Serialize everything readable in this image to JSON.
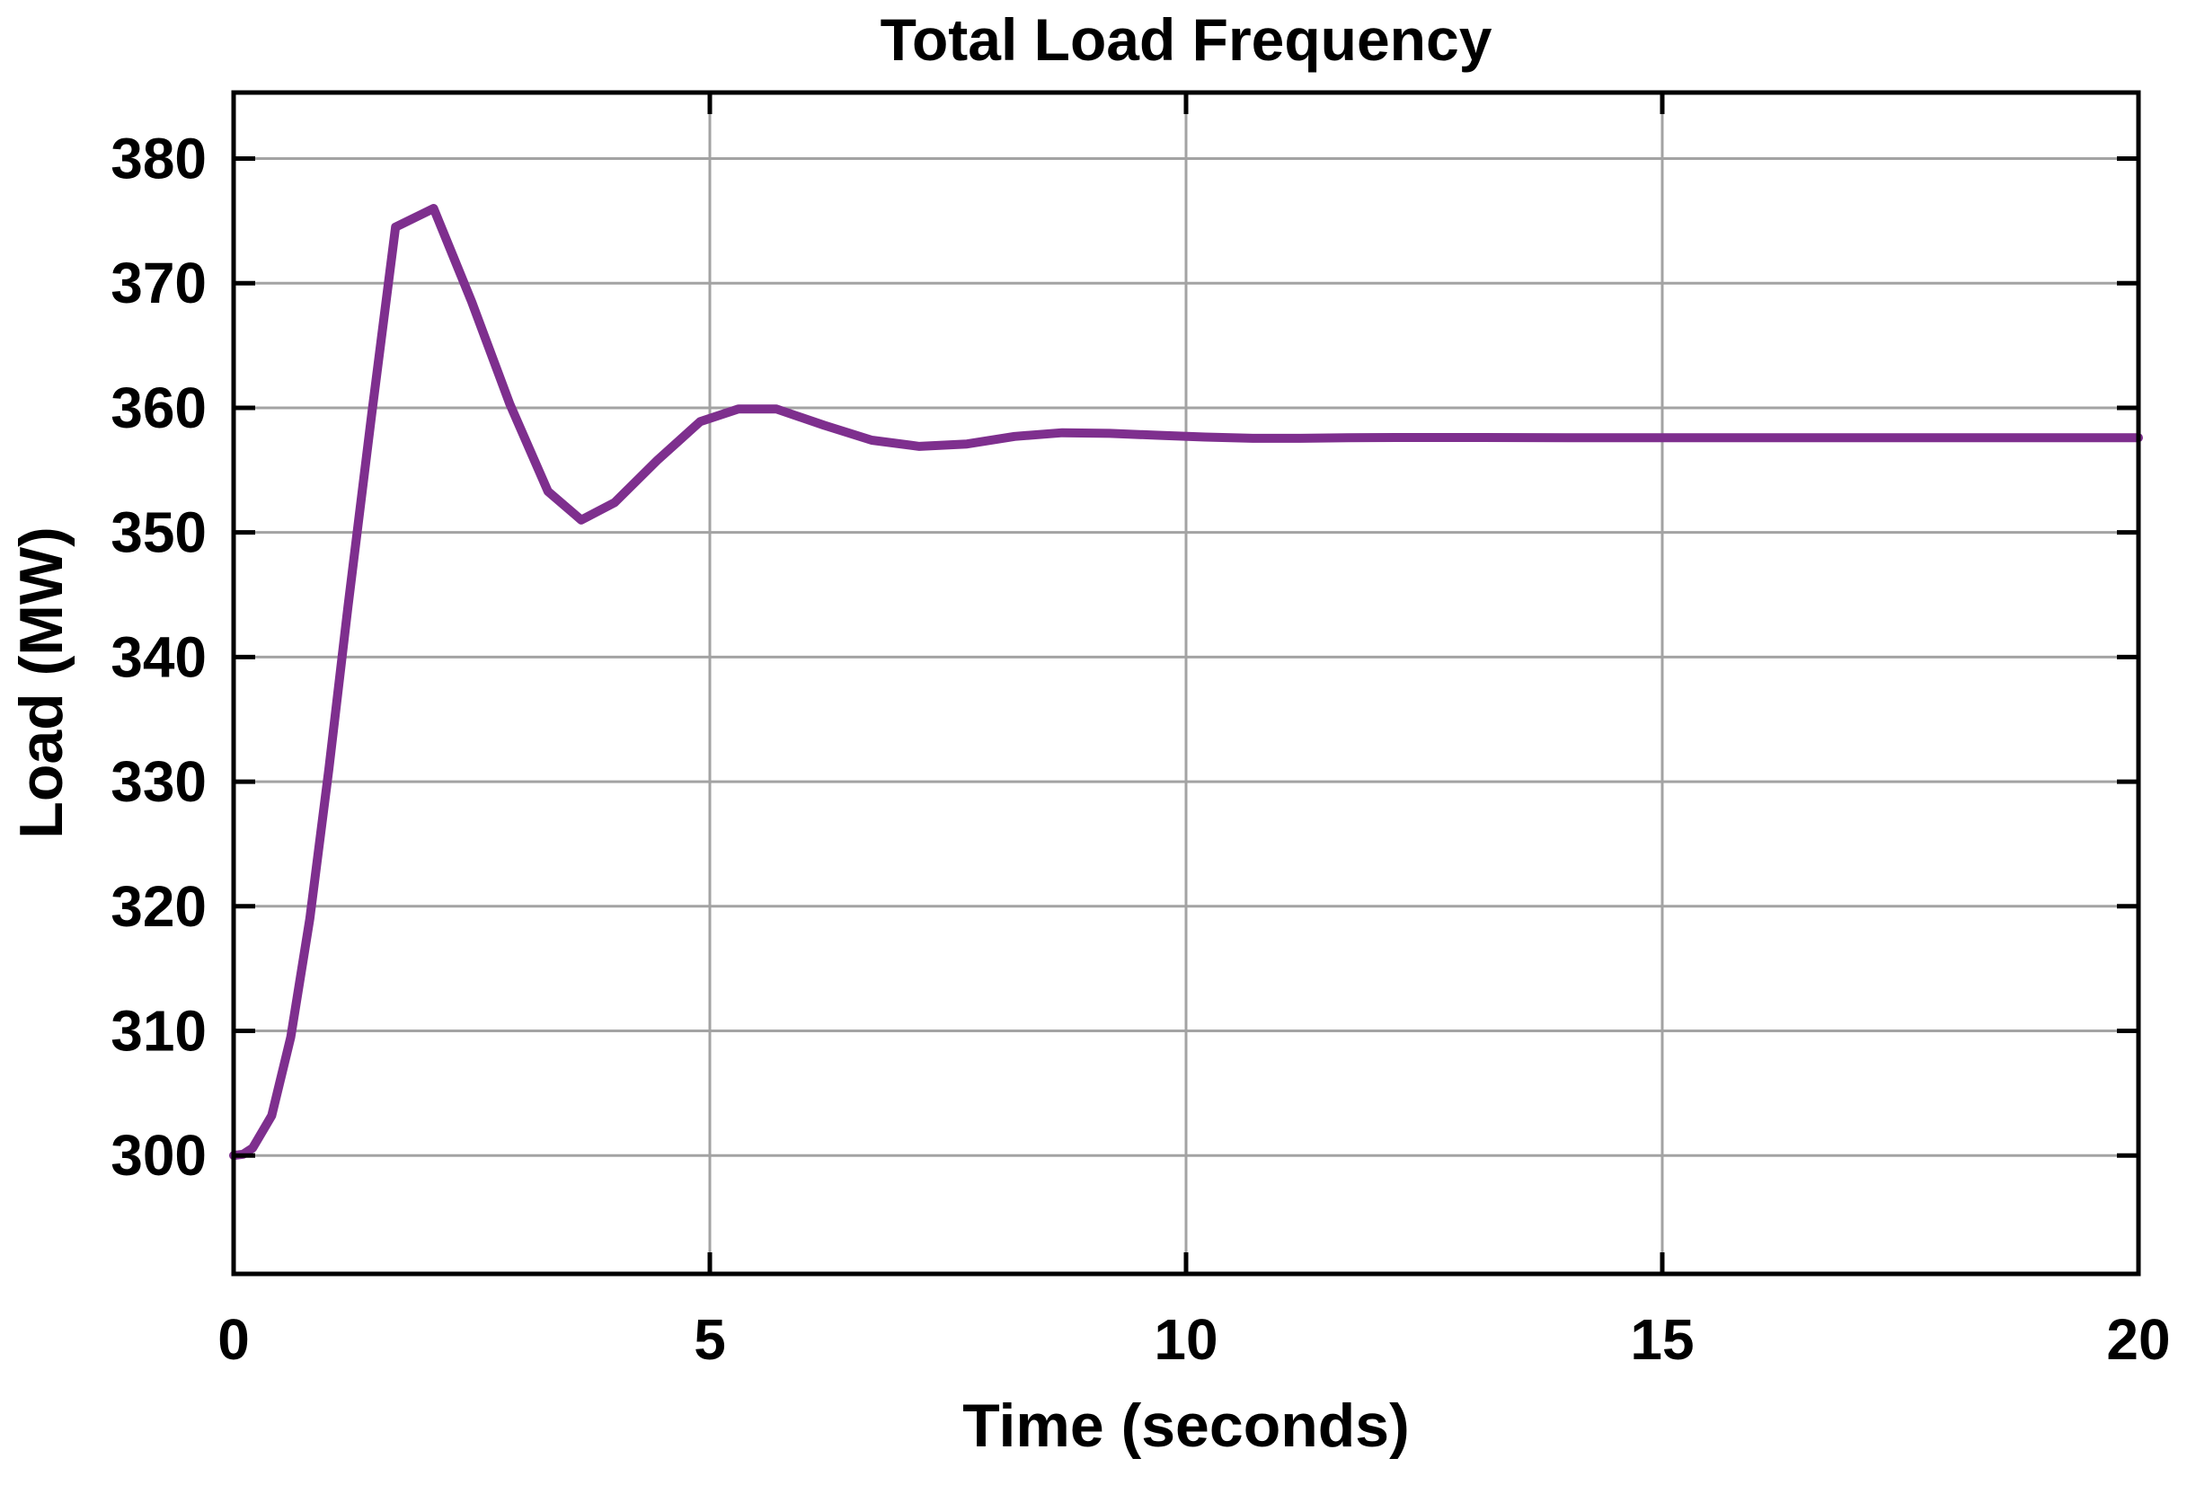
{
  "chart_data": {
    "type": "line",
    "title": "Total Load Frequency",
    "xlabel": "Time (seconds)",
    "ylabel": "Load (MW)",
    "xlim": [
      0,
      20
    ],
    "ylim": [
      290.5,
      385.3
    ],
    "xticks": [
      0,
      5,
      10,
      15,
      20
    ],
    "yticks": [
      300,
      310,
      320,
      330,
      340,
      350,
      360,
      370,
      380
    ],
    "grid": true,
    "legend": null,
    "colors": {
      "line": "#7E2F8E",
      "grid": "#A3A3A3",
      "axis": "#000000",
      "background": "#FFFFFF",
      "text": "#000000"
    },
    "series": [
      {
        "name": "total-load-frequency",
        "color": "#7E2F8E",
        "x": [
          0,
          0.1,
          0.2,
          0.4,
          0.6,
          0.8,
          1.0,
          1.2,
          1.45,
          1.7,
          2.1,
          2.5,
          2.9,
          3.3,
          3.65,
          4.0,
          4.45,
          4.9,
          5.3,
          5.7,
          6.2,
          6.7,
          7.2,
          7.7,
          8.2,
          8.7,
          9.2,
          9.7,
          10.2,
          10.7,
          11.2,
          11.7,
          12.2,
          13,
          14,
          15,
          16,
          17,
          18,
          19,
          20
        ],
        "y": [
          300,
          300.1,
          300.6,
          303.2,
          309.5,
          319,
          331,
          344,
          359.5,
          374.5,
          376,
          368.5,
          360.3,
          353.3,
          351,
          352.4,
          355.8,
          358.9,
          359.9,
          359.9,
          358.6,
          357.4,
          356.9,
          357.1,
          357.7,
          358,
          357.95,
          357.8,
          357.65,
          357.55,
          357.55,
          357.6,
          357.62,
          357.62,
          357.6,
          357.6,
          357.6,
          357.6,
          357.6,
          357.6,
          357.6
        ]
      }
    ]
  }
}
